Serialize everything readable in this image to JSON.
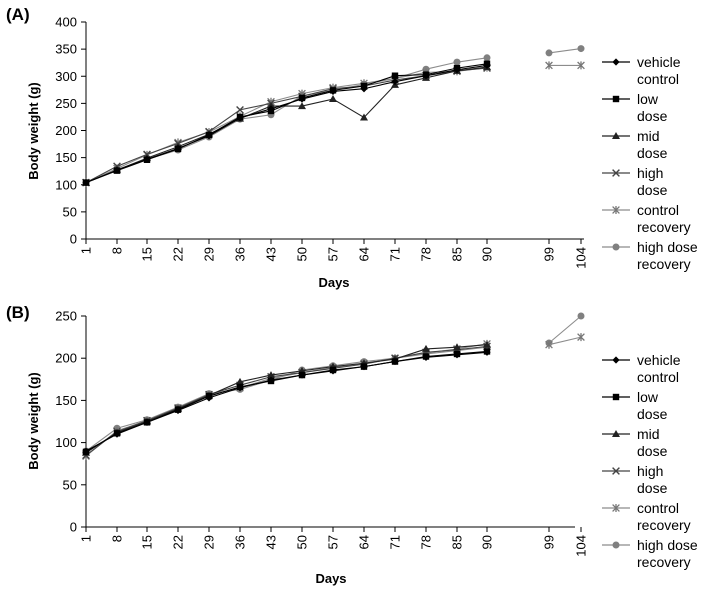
{
  "chart_data": [
    {
      "panel_label": "(A)",
      "type": "line",
      "xlabel": "Days",
      "ylabel": "Body weight (g)",
      "ylim": [
        0,
        400
      ],
      "yticks": [
        0,
        50,
        100,
        150,
        200,
        250,
        300,
        350,
        400
      ],
      "xticks": [
        "1",
        "8",
        "15",
        "22",
        "29",
        "36",
        "43",
        "50",
        "57",
        "64",
        "71",
        "78",
        "85",
        "90",
        "99",
        "104"
      ],
      "grid": false,
      "legend_position": "right",
      "series": [
        {
          "name": "vehicle control",
          "marker": "diamond",
          "color": "#000000",
          "x": [
            1,
            8,
            15,
            22,
            29,
            36,
            43,
            50,
            57,
            64,
            71,
            78,
            85,
            90
          ],
          "values": [
            104,
            127,
            147,
            167,
            190,
            223,
            240,
            258,
            272,
            277,
            290,
            301,
            312,
            320
          ]
        },
        {
          "name": "low dose",
          "marker": "square",
          "color": "#000000",
          "x": [
            1,
            8,
            15,
            22,
            29,
            36,
            43,
            50,
            57,
            64,
            71,
            78,
            85,
            90
          ],
          "values": [
            104,
            126,
            146,
            166,
            192,
            225,
            236,
            260,
            274,
            282,
            301,
            303,
            315,
            323
          ]
        },
        {
          "name": "mid dose",
          "marker": "triangle",
          "color": "#222222",
          "x": [
            1,
            8,
            15,
            22,
            29,
            36,
            43,
            50,
            57,
            64,
            71,
            78,
            85,
            90
          ],
          "values": [
            104,
            127,
            149,
            170,
            193,
            222,
            245,
            245,
            258,
            224,
            284,
            297,
            310,
            317
          ]
        },
        {
          "name": "high dose",
          "marker": "x",
          "color": "#444444",
          "x": [
            1,
            8,
            15,
            22,
            29,
            36,
            43,
            50,
            57,
            64,
            71,
            78,
            85,
            90
          ],
          "values": [
            104,
            134,
            156,
            176,
            198,
            238,
            250,
            263,
            277,
            282,
            293,
            301,
            310,
            315
          ]
        },
        {
          "name": "control recovery",
          "marker": "star",
          "color": "#777777",
          "x": [
            1,
            8,
            15,
            22,
            29,
            36,
            43,
            50,
            57,
            64,
            71,
            78,
            85,
            90,
            99,
            104
          ],
          "values": [
            104,
            130,
            155,
            178,
            197,
            226,
            253,
            268,
            279,
            287,
            296,
            307,
            309,
            316,
            320,
            320
          ]
        },
        {
          "name": "high dose recovery",
          "marker": "circle",
          "color": "#808080",
          "x": [
            1,
            8,
            15,
            22,
            29,
            36,
            43,
            50,
            57,
            64,
            71,
            78,
            85,
            90,
            99,
            104
          ],
          "values": [
            104,
            128,
            147,
            164,
            188,
            221,
            229,
            264,
            274,
            285,
            296,
            313,
            326,
            334,
            343,
            351
          ]
        }
      ]
    },
    {
      "panel_label": "(B)",
      "type": "line",
      "xlabel": "Days",
      "ylabel": "Body weight (g)",
      "ylim": [
        0,
        250
      ],
      "yticks": [
        0,
        50,
        100,
        150,
        200,
        250
      ],
      "xticks": [
        "1",
        "8",
        "15",
        "22",
        "29",
        "36",
        "43",
        "50",
        "57",
        "64",
        "71",
        "78",
        "85",
        "90",
        "99",
        "104"
      ],
      "grid": false,
      "legend_position": "right",
      "series": [
        {
          "name": "vehicle control",
          "marker": "diamond",
          "color": "#000000",
          "x": [
            1,
            8,
            15,
            22,
            29,
            36,
            43,
            50,
            57,
            64,
            71,
            78,
            85,
            90
          ],
          "values": [
            90,
            110,
            124,
            138,
            153,
            165,
            174,
            180,
            185,
            190,
            196,
            201,
            204,
            207
          ]
        },
        {
          "name": "low dose",
          "marker": "square",
          "color": "#000000",
          "x": [
            1,
            8,
            15,
            22,
            29,
            36,
            43,
            50,
            57,
            64,
            71,
            78,
            85,
            90
          ],
          "values": [
            89,
            111,
            124,
            139,
            155,
            166,
            173,
            180,
            186,
            190,
            196,
            202,
            205,
            208
          ]
        },
        {
          "name": "mid dose",
          "marker": "triangle",
          "color": "#222222",
          "x": [
            1,
            8,
            15,
            22,
            29,
            36,
            43,
            50,
            57,
            64,
            71,
            78,
            85,
            90
          ],
          "values": [
            88,
            112,
            125,
            140,
            156,
            172,
            180,
            185,
            190,
            194,
            199,
            211,
            213,
            216
          ]
        },
        {
          "name": "high dose",
          "marker": "x",
          "color": "#444444",
          "x": [
            1,
            8,
            15,
            22,
            29,
            36,
            43,
            50,
            57,
            64,
            71,
            78,
            85,
            90
          ],
          "values": [
            85,
            113,
            126,
            141,
            157,
            168,
            178,
            183,
            188,
            193,
            200,
            207,
            210,
            214
          ]
        },
        {
          "name": "control recovery",
          "marker": "star",
          "color": "#777777",
          "x": [
            1,
            8,
            15,
            22,
            29,
            36,
            43,
            50,
            57,
            64,
            71,
            78,
            85,
            90,
            99,
            104
          ],
          "values": [
            84,
            114,
            126,
            141,
            156,
            165,
            176,
            183,
            189,
            194,
            200,
            206,
            211,
            217,
            216,
            225
          ]
        },
        {
          "name": "high dose recovery",
          "marker": "circle",
          "color": "#808080",
          "x": [
            1,
            8,
            15,
            22,
            29,
            36,
            43,
            50,
            57,
            64,
            71,
            78,
            85,
            90,
            99,
            104
          ],
          "values": [
            90,
            117,
            127,
            142,
            158,
            163,
            174,
            186,
            191,
            196,
            200,
            205,
            209,
            213,
            218,
            250
          ]
        }
      ]
    }
  ]
}
